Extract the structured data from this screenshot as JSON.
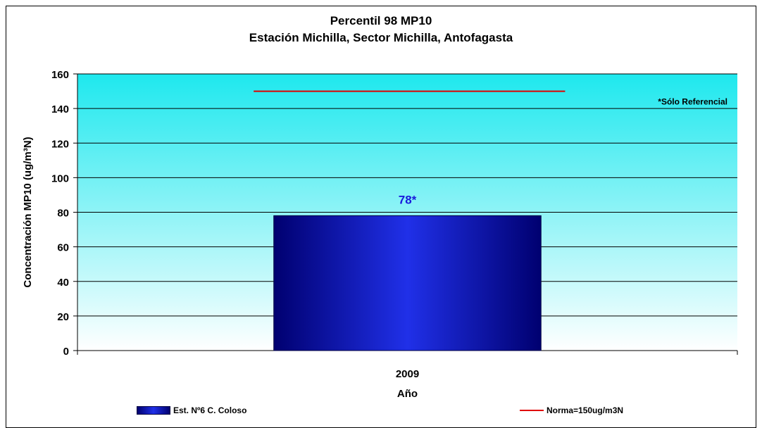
{
  "chart_data": {
    "type": "bar",
    "title": "Percentil 98 MP10",
    "subtitle": "Estación Michilla, Sector Michilla, Antofagasta",
    "xlabel": "Año",
    "ylabel": "Concentración MP10 (ug/m³N)",
    "ylim": [
      0,
      160
    ],
    "yticks": [
      0,
      20,
      40,
      60,
      80,
      100,
      120,
      140,
      160
    ],
    "categories": [
      "2009"
    ],
    "series": [
      {
        "name": "Est. Nº6 C. Coloso",
        "values": [
          78
        ],
        "data_labels": [
          "78*"
        ]
      }
    ],
    "reference_line": {
      "name": "Norma=150ug/m3N",
      "value": 150
    },
    "annotation": "*Sólo Referencial",
    "grid": true,
    "legend_position": "bottom",
    "colors": {
      "bar_dark": "#000070",
      "bar_light": "#2030e8",
      "norm_line": "#e00000",
      "data_label": "#1a1adc",
      "plot_top": "#1ee8ee",
      "plot_bottom": "#ffffff"
    }
  }
}
